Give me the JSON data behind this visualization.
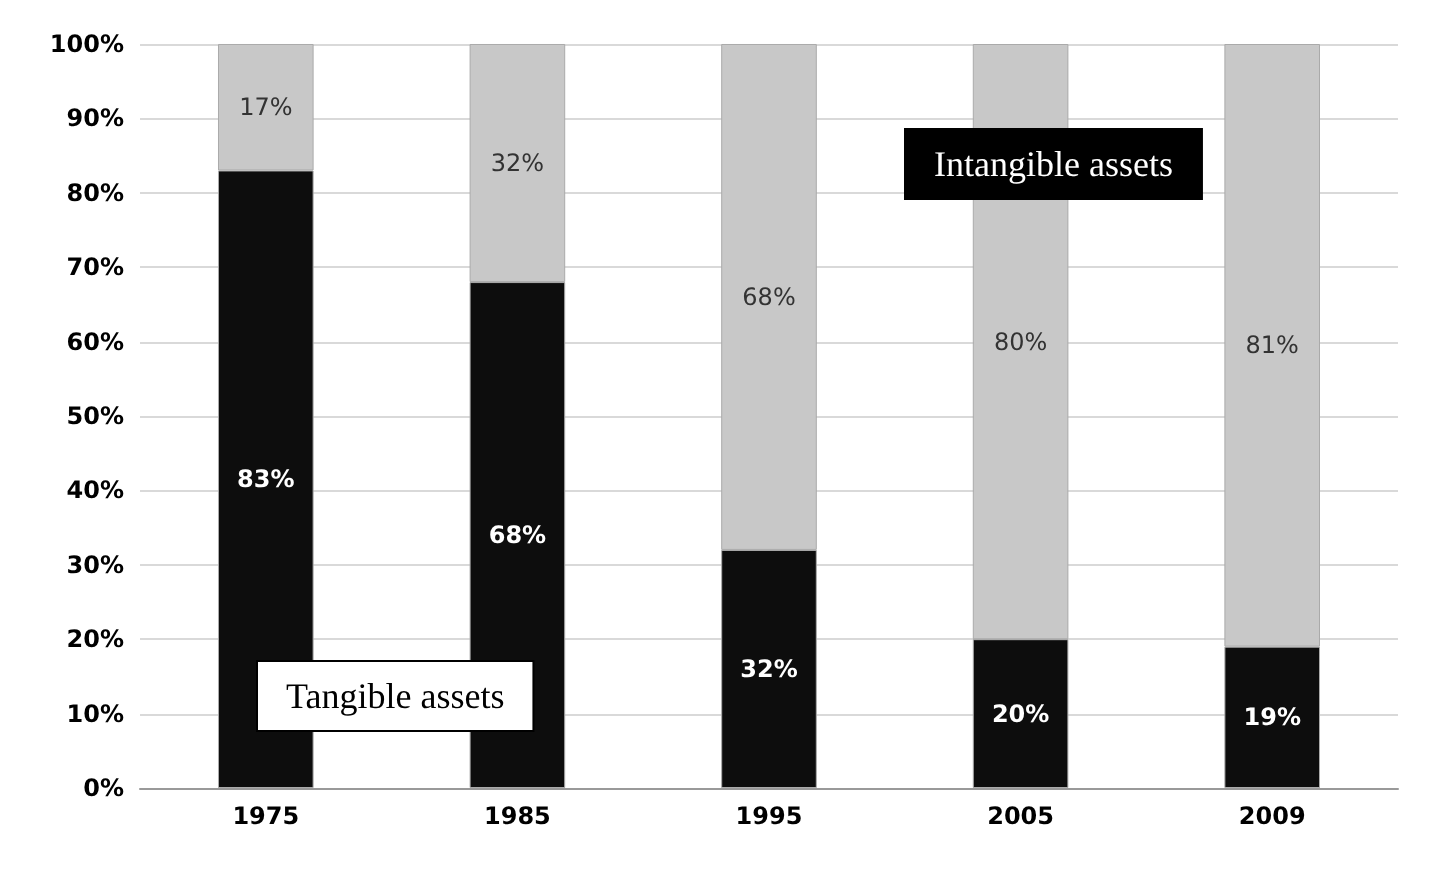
{
  "chart_data": {
    "type": "bar",
    "stacked": true,
    "categories": [
      "1975",
      "1985",
      "1995",
      "2005",
      "2009"
    ],
    "series": [
      {
        "name": "Tangible assets",
        "color": "#0d0d0d",
        "values": [
          83,
          68,
          32,
          20,
          19
        ],
        "value_labels": [
          "83%",
          "68%",
          "32%",
          "20%",
          "19%"
        ]
      },
      {
        "name": "Intangible assets",
        "color": "#c8c8c8",
        "values": [
          17,
          32,
          68,
          80,
          81
        ],
        "value_labels": [
          "17%",
          "32%",
          "68%",
          "80%",
          "81%"
        ]
      }
    ],
    "ylim": [
      0,
      100
    ],
    "yticks": [
      {
        "value": 0,
        "label": "0%"
      },
      {
        "value": 10,
        "label": "10%"
      },
      {
        "value": 20,
        "label": "20%"
      },
      {
        "value": 30,
        "label": "30%"
      },
      {
        "value": 40,
        "label": "40%"
      },
      {
        "value": 50,
        "label": "50%"
      },
      {
        "value": 60,
        "label": "60%"
      },
      {
        "value": 70,
        "label": "70%"
      },
      {
        "value": 80,
        "label": "80%"
      },
      {
        "value": 90,
        "label": "90%"
      },
      {
        "value": 100,
        "label": "100%"
      }
    ],
    "grid": "y",
    "legend": false
  }
}
